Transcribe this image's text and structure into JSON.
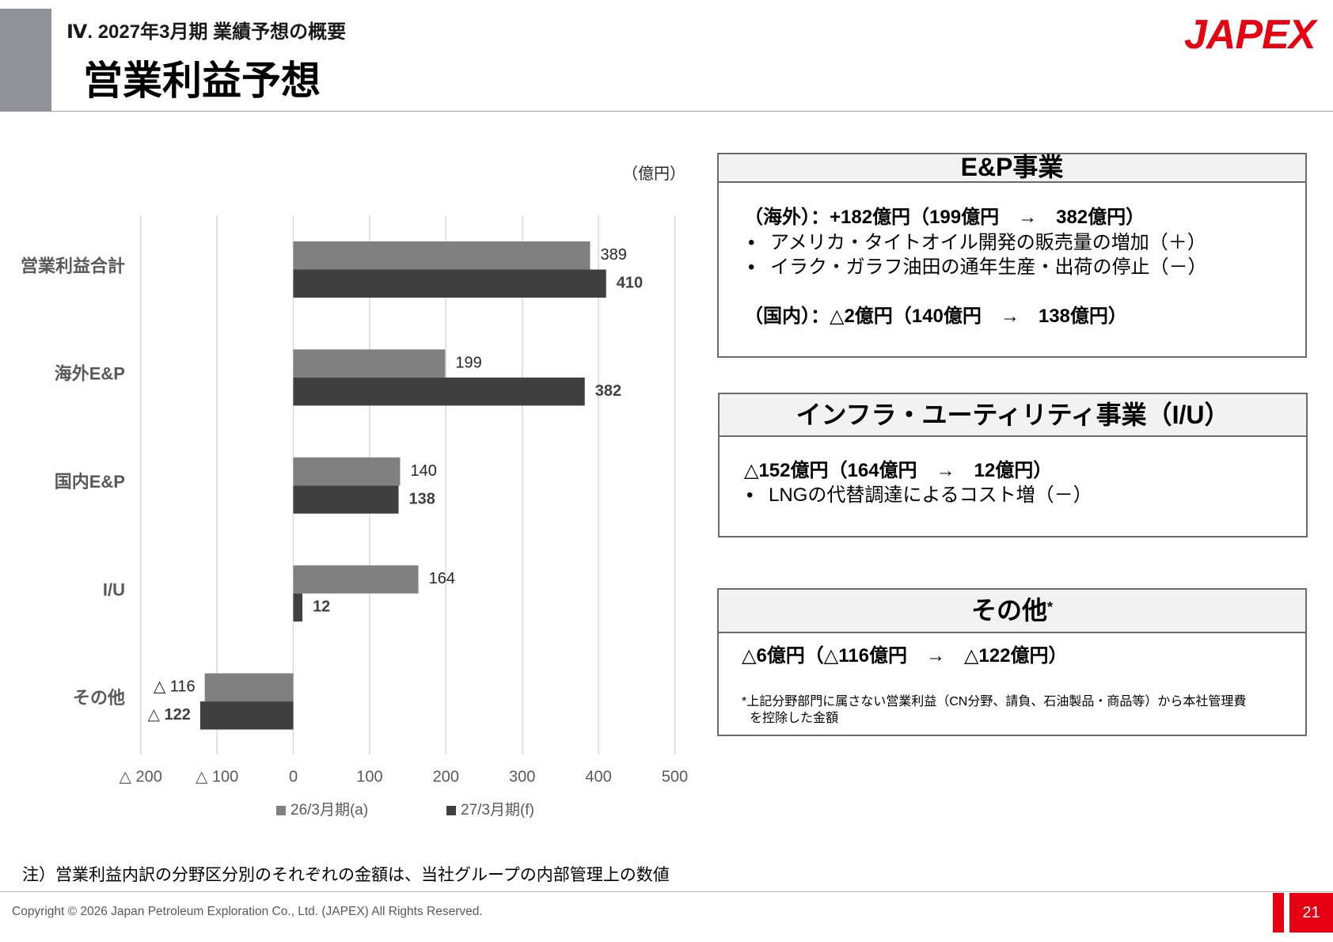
{
  "header": {
    "section": "Ⅳ. 2027年3月期 業績予想の概要",
    "title": "営業利益予想",
    "logo": "JAPEX"
  },
  "chart_data": {
    "type": "bar",
    "orientation": "horizontal",
    "unit": "（億円）",
    "categories": [
      "営業利益合計",
      "海外E&P",
      "国内E&P",
      "I/U",
      "その他"
    ],
    "series": [
      {
        "name": "26/3月期(a)",
        "values": [
          389,
          199,
          140,
          164,
          -116
        ],
        "labels": [
          "389",
          "199",
          "140",
          "164",
          "△ 116"
        ],
        "color": "#808080"
      },
      {
        "name": "27/3月期(f)",
        "values": [
          410,
          382,
          138,
          12,
          -122
        ],
        "labels": [
          "410",
          "382",
          "138",
          "12",
          "△ 122"
        ],
        "color": "#404040"
      }
    ],
    "xlim": [
      -200,
      500
    ],
    "ticks": [
      -200,
      -100,
      0,
      100,
      200,
      300,
      400,
      500
    ],
    "tick_labels": [
      "△ 200",
      "△ 100",
      "0",
      "100",
      "200",
      "300",
      "400",
      "500"
    ],
    "grid": true,
    "legend": "bottom"
  },
  "boxes": {
    "ep": {
      "title": "E&P事業",
      "overseas": "（海外）：+182億円（199億円　→　382億円）",
      "bullets": [
        "アメリカ・タイトオイル開発の販売量の増加（＋）",
        "イラク・ガラフ油田の通年生産・出荷の停止（－）"
      ],
      "domestic": "（国内）：△2億円（140億円　→　138億円）"
    },
    "iu": {
      "title": "インフラ・ユーティリティ事業（I/U）",
      "summary": "△152億円（164億円　→　12億円）",
      "bullets": [
        "LNGの代替調達によるコスト増（－）"
      ]
    },
    "other": {
      "title": "その他",
      "title_mark": "*",
      "summary": "△6億円（△116億円　→　△122億円）",
      "footnote": [
        "*上記分野部門に属さない営業利益（CN分野、請負、石油製品・商品等）から本社管理費",
        "を控除した金額"
      ]
    }
  },
  "note": "注）営業利益内訳の分野区分別のそれぞれの金額は、当社グループの内部管理上の数値",
  "footer": {
    "copyright": "Copyright © 2026 Japan Petroleum Exploration Co., Ltd. (JAPEX) All Rights Reserved.",
    "page": "21"
  },
  "colors": {
    "accent": "#e60012",
    "header_bar": "#8e9297",
    "series_a": "#808080",
    "series_f": "#404040"
  }
}
